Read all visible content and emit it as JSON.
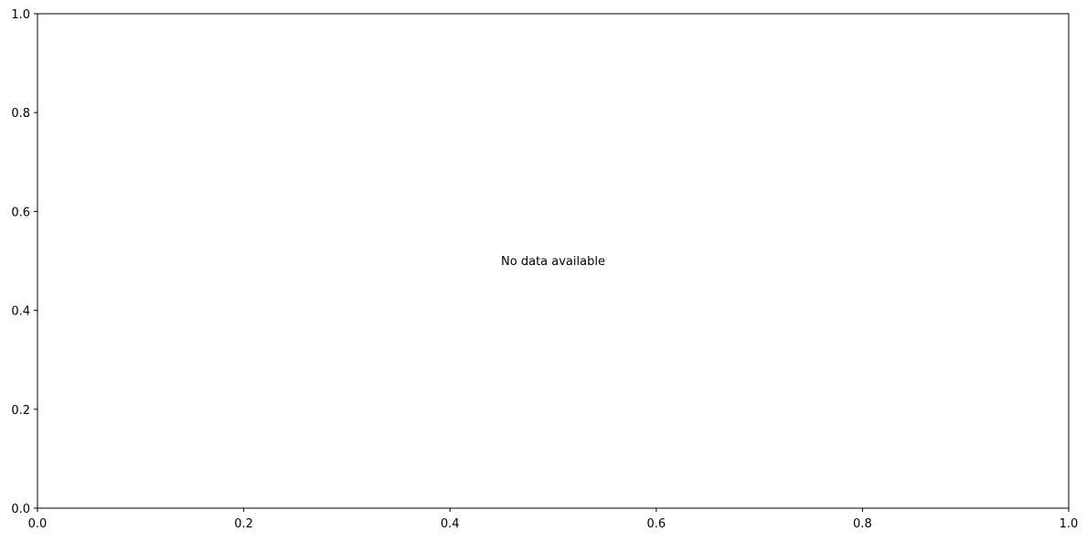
{
  "chart_data": {
    "type": "line",
    "title": "",
    "xlabel": "",
    "ylabel": "",
    "xlim": [
      0,
      1
    ],
    "ylim": [
      0,
      1
    ],
    "x_ticks": [
      "0.0",
      "0.2",
      "0.4",
      "0.6",
      "0.8",
      "1.0"
    ],
    "y_ticks": [
      "0.0",
      "0.2",
      "0.4",
      "0.6",
      "0.8",
      "1.0"
    ],
    "series": [],
    "grid": false,
    "annotation": "No data available"
  }
}
